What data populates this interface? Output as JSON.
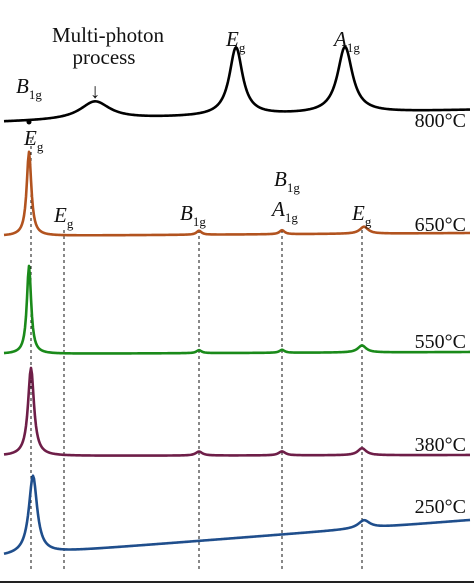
{
  "chart_data": {
    "type": "line",
    "title": "",
    "xlabel": "",
    "ylabel": "",
    "grid": false,
    "legend": "none",
    "annotation": {
      "line1": "Multi-photon",
      "line2": "process",
      "arrow": "↓"
    },
    "peak_labels": [
      {
        "main": "E",
        "sub": "g",
        "id": "eg-800"
      },
      {
        "main": "A",
        "sub": "1g",
        "id": "a1g-800"
      },
      {
        "main": "B",
        "sub": "1g",
        "id": "b1g-800"
      },
      {
        "main": "E",
        "sub": "g",
        "id": "eg-main"
      },
      {
        "main": "E",
        "sub": "g",
        "id": "eg-1"
      },
      {
        "main": "B",
        "sub": "1g",
        "id": "b1g-1"
      },
      {
        "main": "B",
        "sub": "1g",
        "id": "b1g-2"
      },
      {
        "main": "A",
        "sub": "1g",
        "id": "a1g-1"
      },
      {
        "main": "E",
        "sub": "g",
        "id": "eg-2"
      }
    ],
    "guide_positions": [
      31,
      64,
      199,
      282,
      362
    ],
    "series": [
      {
        "name": "800°C",
        "color": "#000000",
        "baseline": 122,
        "tilt": 12,
        "peaks": [
          {
            "x": 95,
            "h": 18,
            "w": 18
          },
          {
            "x": 236,
            "h": 68,
            "w": 8
          },
          {
            "x": 345,
            "h": 66,
            "w": 9
          }
        ]
      },
      {
        "name": "650°C",
        "color": "#B2531F",
        "baseline": 236,
        "tilt": 3,
        "peaks": [
          {
            "x": 29,
            "h": 84,
            "w": 2.8
          },
          {
            "x": 199,
            "h": 4,
            "w": 3
          },
          {
            "x": 282,
            "h": 4,
            "w": 3
          },
          {
            "x": 364,
            "h": 7,
            "w": 5
          }
        ]
      },
      {
        "name": "550°C",
        "color": "#1A8A1A",
        "baseline": 354,
        "tilt": 2,
        "peaks": [
          {
            "x": 29,
            "h": 88,
            "w": 2.6
          },
          {
            "x": 199,
            "h": 3,
            "w": 3
          },
          {
            "x": 282,
            "h": 3,
            "w": 3
          },
          {
            "x": 362,
            "h": 7,
            "w": 5
          }
        ]
      },
      {
        "name": "380°C",
        "color": "#6E1E48",
        "baseline": 456,
        "tilt": 1,
        "peaks": [
          {
            "x": 31,
            "h": 88,
            "w": 3.6
          },
          {
            "x": 199,
            "h": 4,
            "w": 4
          },
          {
            "x": 282,
            "h": 4,
            "w": 4
          },
          {
            "x": 362,
            "h": 7,
            "w": 5
          }
        ]
      },
      {
        "name": "250°C",
        "color": "#1F4E8C",
        "baseline": 556,
        "tilt": 36,
        "peaks": [
          {
            "x": 33,
            "h": 78,
            "w": 5
          },
          {
            "x": 364,
            "h": 8,
            "w": 7
          }
        ]
      }
    ]
  }
}
